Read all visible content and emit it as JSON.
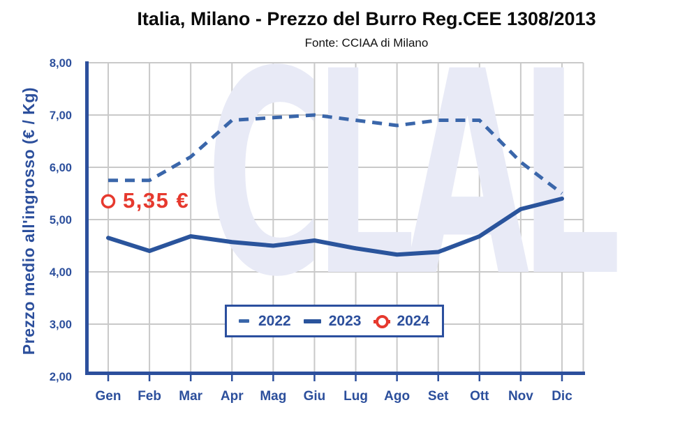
{
  "header": {
    "title": "Italia, Milano - Prezzo del Burro Reg.CEE 1308/2013",
    "subtitle": "Fonte: CCIAA di Milano"
  },
  "chart_data": {
    "type": "line",
    "title": "Italia, Milano - Prezzo del Burro Reg.CEE 1308/2013",
    "subtitle": "Fonte: CCIAA di Milano",
    "xlabel": "",
    "ylabel": "Prezzo medio all'ingrosso (€ / Kg)",
    "categories": [
      "Gen",
      "Feb",
      "Mar",
      "Apr",
      "Mag",
      "Giu",
      "Lug",
      "Ago",
      "Set",
      "Ott",
      "Nov",
      "Dic"
    ],
    "ylim": [
      2.0,
      8.0
    ],
    "y_tick_step": 1.0,
    "y_tick_labels": [
      "2,00",
      "3,00",
      "4,00",
      "5,00",
      "6,00",
      "7,00",
      "8,00"
    ],
    "grid": true,
    "legend_position": "inside-bottom-center",
    "series": [
      {
        "name": "2022",
        "style": "dashed",
        "color": "#3a66aa",
        "values": [
          5.75,
          5.75,
          6.2,
          6.9,
          6.95,
          7.0,
          6.9,
          6.8,
          6.9,
          6.9,
          6.1,
          5.5
        ]
      },
      {
        "name": "2023",
        "style": "solid",
        "color": "#2a549c",
        "values": [
          4.65,
          4.4,
          4.68,
          4.57,
          4.5,
          4.6,
          4.45,
          4.33,
          4.38,
          4.68,
          5.2,
          5.4
        ]
      },
      {
        "name": "2024",
        "style": "marker",
        "color": "#e6392e",
        "values": [
          5.35,
          null,
          null,
          null,
          null,
          null,
          null,
          null,
          null,
          null,
          null,
          null
        ]
      }
    ],
    "annotation": {
      "text": "5,35 €",
      "series": "2024",
      "month": "Gen",
      "value": 5.35
    },
    "watermark": "CLAL",
    "colors": {
      "axis": "#2c4f9c",
      "grid": "#c9c9c9",
      "watermark": "#e8eaf6",
      "annotation": "#e6392e",
      "title": "#0a0a0a"
    }
  }
}
